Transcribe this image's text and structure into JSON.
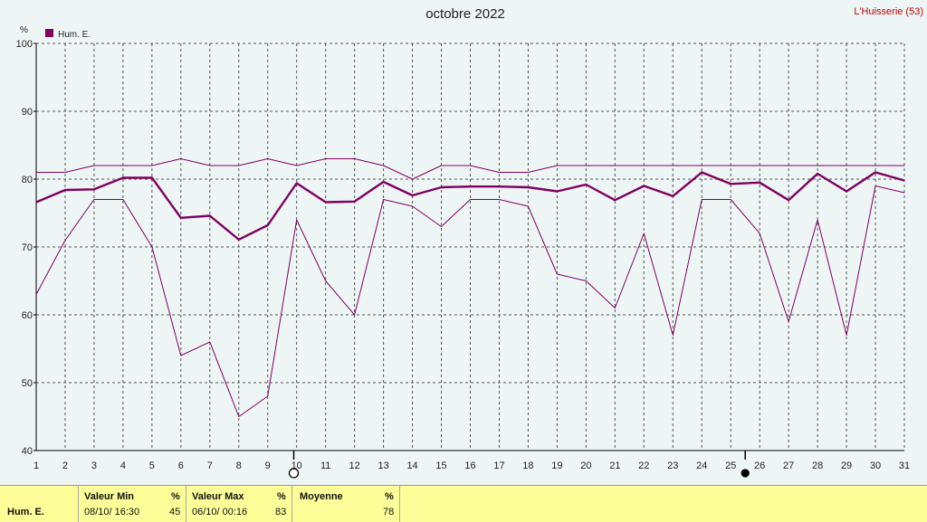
{
  "header": {
    "title": "octobre 2022",
    "station": "L'Huisserie (53)",
    "unit": "%",
    "legend_label": "Hum. E."
  },
  "colors": {
    "series": "#800060",
    "grid": "#555555",
    "moon_marker": "#000000"
  },
  "chart_data": {
    "type": "line",
    "title": "octobre 2022",
    "ylabel": "%",
    "ylim": [
      40,
      100
    ],
    "y_ticks": [
      40,
      50,
      60,
      70,
      80,
      90,
      100
    ],
    "x": [
      1,
      2,
      3,
      4,
      5,
      6,
      7,
      8,
      9,
      10,
      11,
      12,
      13,
      14,
      15,
      16,
      17,
      18,
      19,
      20,
      21,
      22,
      23,
      24,
      25,
      26,
      27,
      28,
      29,
      30,
      31
    ],
    "grid": true,
    "legend_position": "top-left",
    "series": [
      {
        "name": "Hum. E.",
        "role": "mean",
        "values": [
          76.6,
          78.4,
          78.5,
          80.2,
          80.2,
          74.3,
          74.6,
          71.1,
          73.2,
          79.4,
          76.6,
          76.7,
          79.6,
          77.6,
          78.8,
          78.9,
          78.9,
          78.8,
          78.2,
          79.2,
          76.9,
          79.0,
          77.5,
          81.0,
          79.3,
          79.5,
          76.9,
          80.8,
          78.2,
          81.0,
          79.8
        ]
      },
      {
        "role": "max",
        "values": [
          81,
          81,
          82,
          82,
          82,
          83,
          82,
          82,
          83,
          82,
          83,
          83,
          82,
          80,
          82,
          82,
          81,
          81,
          82,
          82,
          82,
          82,
          82,
          82,
          82,
          82,
          82,
          82,
          82,
          82,
          82
        ]
      },
      {
        "role": "min",
        "values": [
          63,
          71,
          77,
          77,
          70,
          54,
          56,
          45,
          48,
          74,
          65,
          60,
          77,
          76,
          73,
          77,
          77,
          76,
          66,
          65,
          61,
          72,
          57,
          77,
          77,
          72,
          59,
          74,
          57,
          79,
          78
        ]
      }
    ],
    "moon_phases": [
      {
        "phase": "full",
        "day": 9.9
      },
      {
        "phase": "new",
        "day": 25.5
      }
    ]
  },
  "footer": {
    "row_label": "Hum. E.",
    "min": {
      "label": "Valeur Min",
      "unit": "%",
      "when": "08/10/ 16:30",
      "value": "45"
    },
    "max": {
      "label": "Valeur Max",
      "unit": "%",
      "when": "06/10/ 00:16",
      "value": "83"
    },
    "mean": {
      "label": "Moyenne",
      "unit": "%",
      "value": "78"
    }
  }
}
